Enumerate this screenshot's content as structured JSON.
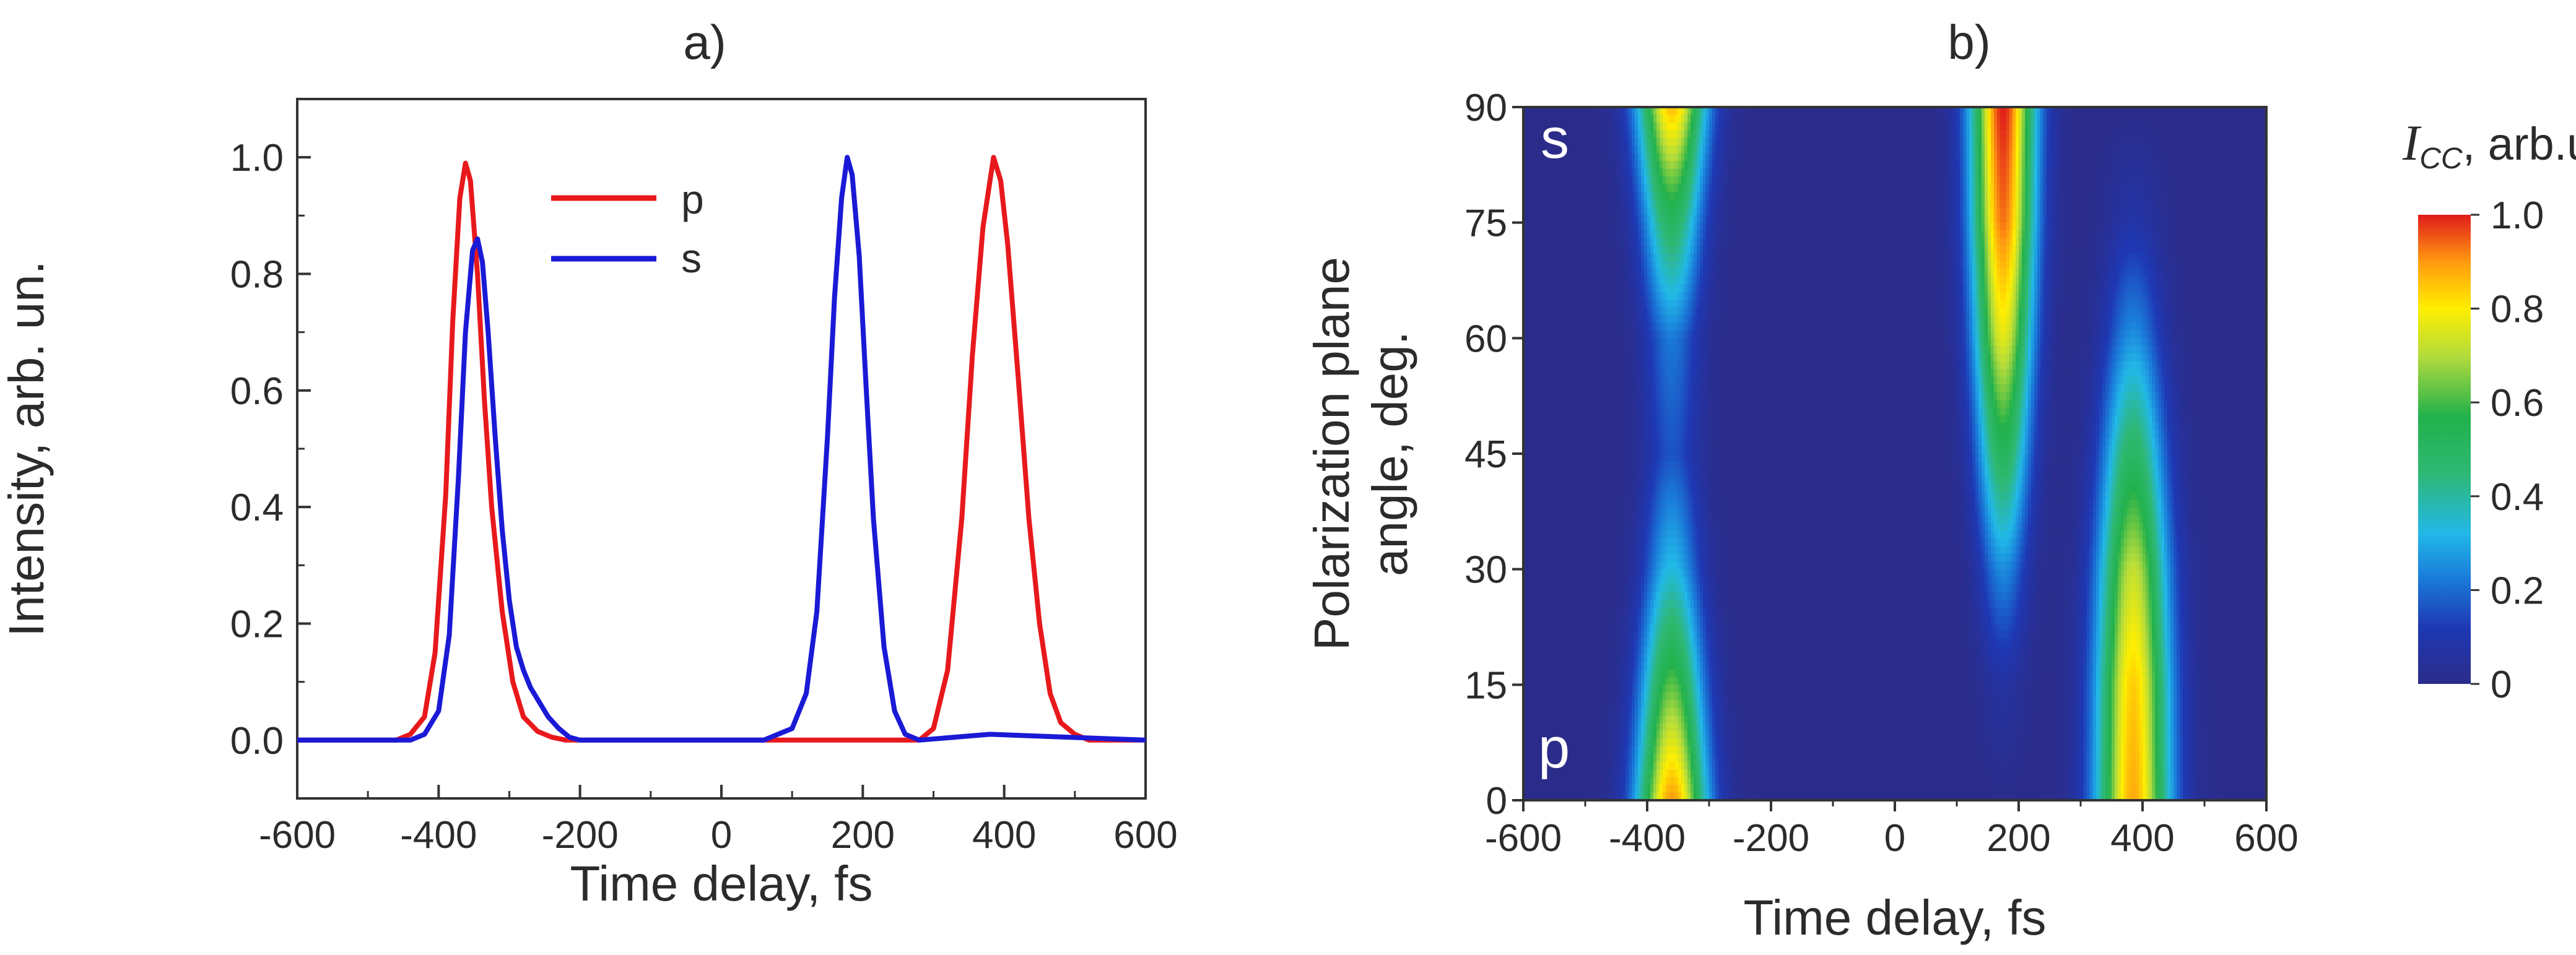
{
  "chart_data": [
    {
      "type": "line",
      "title": "a)",
      "xlabel": "Time delay, fs",
      "ylabel": "Intensity, arb. un.",
      "xlim": [
        -600,
        600
      ],
      "ylim": [
        -0.1,
        1.1
      ],
      "xticks": [
        -600,
        -400,
        -200,
        0,
        200,
        400,
        600
      ],
      "yticks": [
        0.0,
        0.2,
        0.4,
        0.6,
        0.8,
        1.0
      ],
      "xtick_labels": [
        "-600",
        "-400",
        "-200",
        "0",
        "200",
        "400",
        "600"
      ],
      "ytick_labels": [
        "0.0",
        "0.2",
        "0.4",
        "0.6",
        "0.8",
        "1.0"
      ],
      "grid": false,
      "legend_position": "top-center",
      "series": [
        {
          "name": "p",
          "color": "#e8191c",
          "x": [
            -600,
            -460,
            -440,
            -420,
            -405,
            -390,
            -380,
            -370,
            -362,
            -355,
            -345,
            -335,
            -325,
            -310,
            -295,
            -280,
            -260,
            -240,
            -220,
            -200,
            -100,
            0,
            100,
            200,
            280,
            300,
            320,
            340,
            355,
            370,
            385,
            395,
            405,
            420,
            435,
            450,
            465,
            480,
            500,
            520,
            600
          ],
          "y": [
            0.0,
            0.0,
            0.01,
            0.04,
            0.15,
            0.42,
            0.72,
            0.93,
            0.99,
            0.96,
            0.8,
            0.58,
            0.4,
            0.22,
            0.1,
            0.04,
            0.015,
            0.005,
            0.0,
            0.0,
            0.0,
            0.0,
            0.0,
            0.0,
            0.0,
            0.02,
            0.12,
            0.38,
            0.66,
            0.88,
            1.0,
            0.96,
            0.85,
            0.62,
            0.38,
            0.2,
            0.08,
            0.03,
            0.01,
            0.0,
            0.0
          ]
        },
        {
          "name": "s",
          "color": "#1a1ad6",
          "x": [
            -600,
            -440,
            -420,
            -400,
            -385,
            -372,
            -362,
            -352,
            -345,
            -338,
            -330,
            -320,
            -310,
            -300,
            -290,
            -280,
            -270,
            -260,
            -245,
            -230,
            -215,
            -200,
            -100,
            0,
            60,
            100,
            120,
            135,
            150,
            160,
            170,
            178,
            185,
            195,
            205,
            215,
            230,
            245,
            260,
            280,
            380,
            600
          ],
          "y": [
            0.0,
            0.0,
            0.01,
            0.05,
            0.18,
            0.45,
            0.7,
            0.84,
            0.86,
            0.82,
            0.7,
            0.52,
            0.36,
            0.24,
            0.16,
            0.12,
            0.09,
            0.07,
            0.04,
            0.02,
            0.005,
            0.0,
            0.0,
            0.0,
            0.0,
            0.02,
            0.08,
            0.22,
            0.52,
            0.76,
            0.93,
            1.0,
            0.97,
            0.83,
            0.6,
            0.38,
            0.16,
            0.05,
            0.01,
            0.0,
            0.01,
            0.0
          ]
        }
      ]
    },
    {
      "type": "heatmap",
      "title": "b)",
      "xlabel": "Time delay, fs",
      "ylabel_line1": "Polarization plane",
      "ylabel_line2": "angle, deg.",
      "xlim": [
        -600,
        600
      ],
      "ylim": [
        0,
        90
      ],
      "xticks": [
        -600,
        -400,
        -200,
        0,
        200,
        400,
        600
      ],
      "yticks": [
        0,
        15,
        30,
        45,
        60,
        75,
        90
      ],
      "xtick_labels": [
        "-600",
        "-400",
        "-200",
        "0",
        "200",
        "400",
        "600"
      ],
      "ytick_labels": [
        "0",
        "15",
        "30",
        "45",
        "60",
        "75",
        "90"
      ],
      "corner_label_top": "s",
      "corner_label_bottom": "p",
      "description": "Cross-correlation intensity I_CC vs time delay and polarization angle; three bands at -360 fs, 175 fs and 385 fs.",
      "bands": [
        {
          "center_fs": -360,
          "width_fs": 34,
          "angle_deg": [
            0,
            15,
            30,
            45,
            60,
            75,
            90
          ],
          "peak": [
            0.9,
            0.62,
            0.33,
            0.16,
            0.22,
            0.5,
            0.86
          ]
        },
        {
          "center_fs": 175,
          "width_fs": 30,
          "angle_deg": [
            0,
            15,
            30,
            45,
            60,
            75,
            90
          ],
          "peak": [
            0.0,
            0.06,
            0.25,
            0.52,
            0.76,
            0.93,
            1.0
          ]
        },
        {
          "center_fs": 385,
          "width_fs": 36,
          "angle_deg": [
            0,
            15,
            30,
            45,
            60,
            75,
            90
          ],
          "peak": [
            0.88,
            0.84,
            0.72,
            0.5,
            0.26,
            0.08,
            0.0
          ]
        }
      ],
      "colorbar": {
        "label_italic": "I",
        "label_subscript": "CC",
        "label_rest": ", arb.un.",
        "ticks": [
          0,
          0.2,
          0.4,
          0.6,
          0.8,
          1.0
        ],
        "tick_labels": [
          "0",
          "0.2",
          "0.4",
          "0.6",
          "0.8",
          "1.0"
        ],
        "range": [
          0,
          1
        ]
      }
    }
  ]
}
